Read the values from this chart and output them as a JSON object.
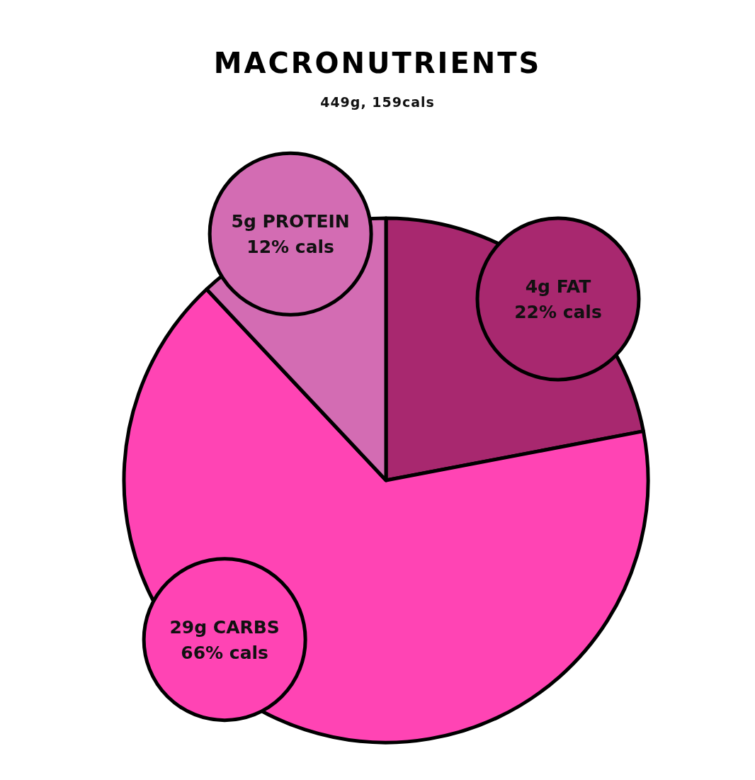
{
  "chart_data": {
    "type": "pie",
    "title": "MACRONUTRIENTS",
    "subtitle": "449g, 159cals",
    "categories": [
      "4g FAT",
      "29g CARBS",
      "5g PROTEIN"
    ],
    "values": [
      22,
      66,
      12
    ],
    "colors": [
      "#a8286f",
      "#ff44b4",
      "#d36cb3"
    ],
    "value_labels": [
      "22% cals",
      "66% cals",
      "12% cals"
    ]
  }
}
